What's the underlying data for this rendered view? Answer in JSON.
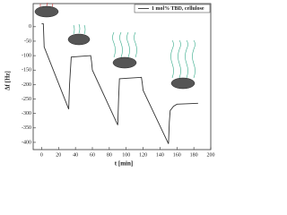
{
  "chart_data": {
    "type": "line",
    "xlabel": "t [min]",
    "ylabel": "Δf [Hz]",
    "x": [
      0,
      2,
      3,
      32,
      33,
      35,
      58,
      59,
      60,
      90,
      91,
      92,
      118,
      119,
      120,
      150,
      151,
      152,
      156,
      160,
      185
    ],
    "series": [
      {
        "name": "1 mol% TBD, cellulose",
        "color": "#333333",
        "values": [
          10,
          10,
          -70,
          -285,
          -200,
          -105,
          -100,
          -120,
          -150,
          -340,
          -250,
          -180,
          -175,
          -195,
          -220,
          -405,
          -330,
          -290,
          -275,
          -268,
          -265
        ]
      }
    ],
    "xlim": [
      -10,
      200
    ],
    "xticks": [
      0,
      20,
      40,
      60,
      80,
      100,
      120,
      140,
      160,
      180,
      200
    ],
    "ylim": [
      -425,
      80
    ],
    "yticks": [
      0,
      -50,
      -100,
      -150,
      -200,
      -250,
      -300,
      -350,
      -400
    ]
  }
}
